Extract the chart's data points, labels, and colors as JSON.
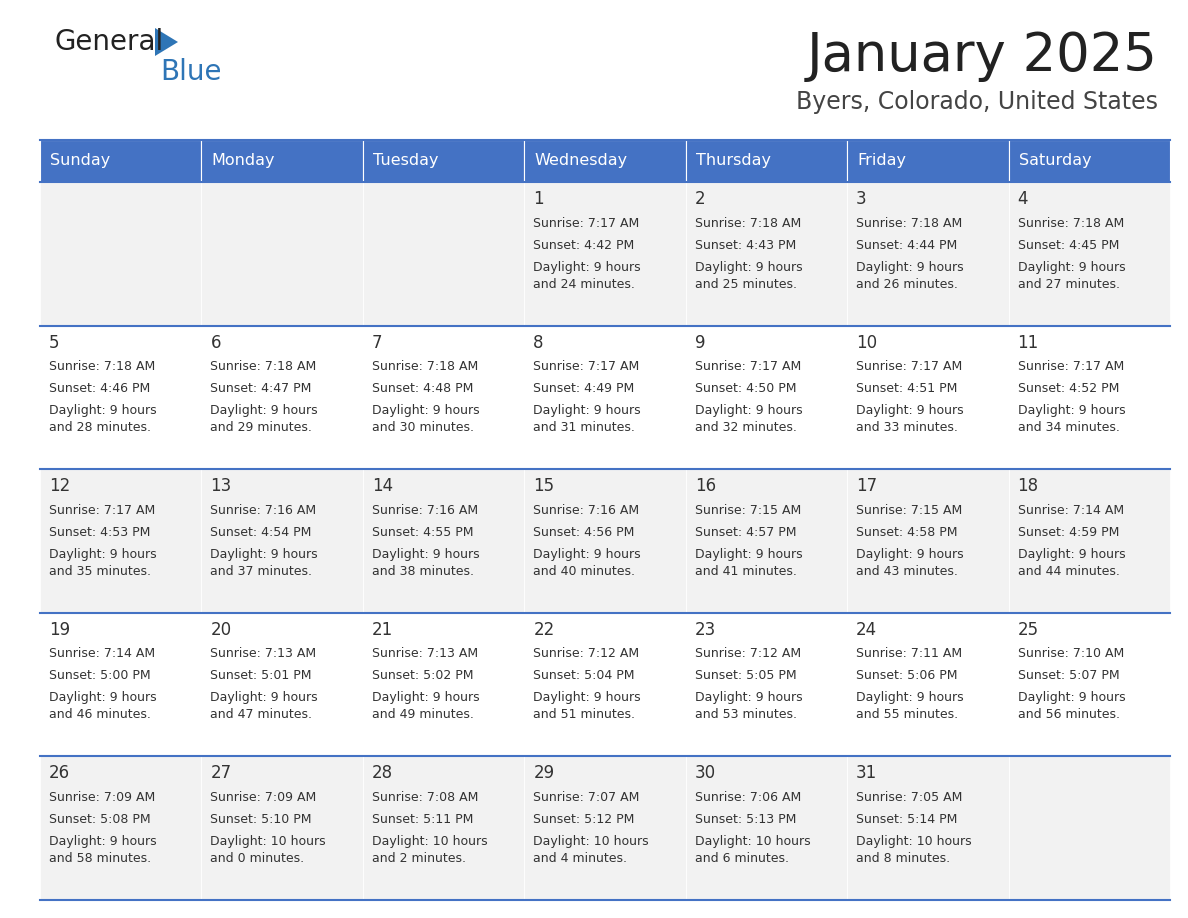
{
  "title": "January 2025",
  "subtitle": "Byers, Colorado, United States",
  "days_of_week": [
    "Sunday",
    "Monday",
    "Tuesday",
    "Wednesday",
    "Thursday",
    "Friday",
    "Saturday"
  ],
  "header_bg": "#4472C4",
  "header_text_color": "#FFFFFF",
  "row_bg_light": "#F2F2F2",
  "row_bg_white": "#FFFFFF",
  "cell_text_color": "#333333",
  "separator_color": "#4472C4",
  "calendar_data": [
    [
      {
        "day": "",
        "sunrise": "",
        "sunset": "",
        "daylight": ""
      },
      {
        "day": "",
        "sunrise": "",
        "sunset": "",
        "daylight": ""
      },
      {
        "day": "",
        "sunrise": "",
        "sunset": "",
        "daylight": ""
      },
      {
        "day": "1",
        "sunrise": "7:17 AM",
        "sunset": "4:42 PM",
        "daylight": "9 hours\nand 24 minutes."
      },
      {
        "day": "2",
        "sunrise": "7:18 AM",
        "sunset": "4:43 PM",
        "daylight": "9 hours\nand 25 minutes."
      },
      {
        "day": "3",
        "sunrise": "7:18 AM",
        "sunset": "4:44 PM",
        "daylight": "9 hours\nand 26 minutes."
      },
      {
        "day": "4",
        "sunrise": "7:18 AM",
        "sunset": "4:45 PM",
        "daylight": "9 hours\nand 27 minutes."
      }
    ],
    [
      {
        "day": "5",
        "sunrise": "7:18 AM",
        "sunset": "4:46 PM",
        "daylight": "9 hours\nand 28 minutes."
      },
      {
        "day": "6",
        "sunrise": "7:18 AM",
        "sunset": "4:47 PM",
        "daylight": "9 hours\nand 29 minutes."
      },
      {
        "day": "7",
        "sunrise": "7:18 AM",
        "sunset": "4:48 PM",
        "daylight": "9 hours\nand 30 minutes."
      },
      {
        "day": "8",
        "sunrise": "7:17 AM",
        "sunset": "4:49 PM",
        "daylight": "9 hours\nand 31 minutes."
      },
      {
        "day": "9",
        "sunrise": "7:17 AM",
        "sunset": "4:50 PM",
        "daylight": "9 hours\nand 32 minutes."
      },
      {
        "day": "10",
        "sunrise": "7:17 AM",
        "sunset": "4:51 PM",
        "daylight": "9 hours\nand 33 minutes."
      },
      {
        "day": "11",
        "sunrise": "7:17 AM",
        "sunset": "4:52 PM",
        "daylight": "9 hours\nand 34 minutes."
      }
    ],
    [
      {
        "day": "12",
        "sunrise": "7:17 AM",
        "sunset": "4:53 PM",
        "daylight": "9 hours\nand 35 minutes."
      },
      {
        "day": "13",
        "sunrise": "7:16 AM",
        "sunset": "4:54 PM",
        "daylight": "9 hours\nand 37 minutes."
      },
      {
        "day": "14",
        "sunrise": "7:16 AM",
        "sunset": "4:55 PM",
        "daylight": "9 hours\nand 38 minutes."
      },
      {
        "day": "15",
        "sunrise": "7:16 AM",
        "sunset": "4:56 PM",
        "daylight": "9 hours\nand 40 minutes."
      },
      {
        "day": "16",
        "sunrise": "7:15 AM",
        "sunset": "4:57 PM",
        "daylight": "9 hours\nand 41 minutes."
      },
      {
        "day": "17",
        "sunrise": "7:15 AM",
        "sunset": "4:58 PM",
        "daylight": "9 hours\nand 43 minutes."
      },
      {
        "day": "18",
        "sunrise": "7:14 AM",
        "sunset": "4:59 PM",
        "daylight": "9 hours\nand 44 minutes."
      }
    ],
    [
      {
        "day": "19",
        "sunrise": "7:14 AM",
        "sunset": "5:00 PM",
        "daylight": "9 hours\nand 46 minutes."
      },
      {
        "day": "20",
        "sunrise": "7:13 AM",
        "sunset": "5:01 PM",
        "daylight": "9 hours\nand 47 minutes."
      },
      {
        "day": "21",
        "sunrise": "7:13 AM",
        "sunset": "5:02 PM",
        "daylight": "9 hours\nand 49 minutes."
      },
      {
        "day": "22",
        "sunrise": "7:12 AM",
        "sunset": "5:04 PM",
        "daylight": "9 hours\nand 51 minutes."
      },
      {
        "day": "23",
        "sunrise": "7:12 AM",
        "sunset": "5:05 PM",
        "daylight": "9 hours\nand 53 minutes."
      },
      {
        "day": "24",
        "sunrise": "7:11 AM",
        "sunset": "5:06 PM",
        "daylight": "9 hours\nand 55 minutes."
      },
      {
        "day": "25",
        "sunrise": "7:10 AM",
        "sunset": "5:07 PM",
        "daylight": "9 hours\nand 56 minutes."
      }
    ],
    [
      {
        "day": "26",
        "sunrise": "7:09 AM",
        "sunset": "5:08 PM",
        "daylight": "9 hours\nand 58 minutes."
      },
      {
        "day": "27",
        "sunrise": "7:09 AM",
        "sunset": "5:10 PM",
        "daylight": "10 hours\nand 0 minutes."
      },
      {
        "day": "28",
        "sunrise": "7:08 AM",
        "sunset": "5:11 PM",
        "daylight": "10 hours\nand 2 minutes."
      },
      {
        "day": "29",
        "sunrise": "7:07 AM",
        "sunset": "5:12 PM",
        "daylight": "10 hours\nand 4 minutes."
      },
      {
        "day": "30",
        "sunrise": "7:06 AM",
        "sunset": "5:13 PM",
        "daylight": "10 hours\nand 6 minutes."
      },
      {
        "day": "31",
        "sunrise": "7:05 AM",
        "sunset": "5:14 PM",
        "daylight": "10 hours\nand 8 minutes."
      },
      {
        "day": "",
        "sunrise": "",
        "sunset": "",
        "daylight": ""
      }
    ]
  ]
}
